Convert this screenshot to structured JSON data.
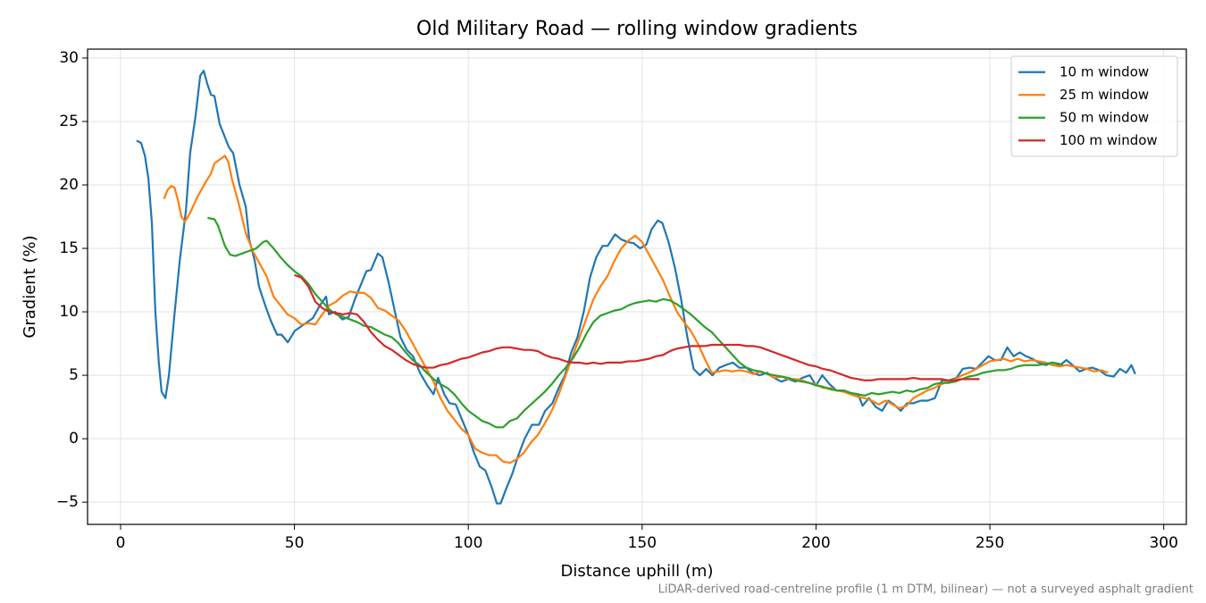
{
  "chart_data": {
    "type": "line",
    "title": "Old Military Road — rolling window gradients",
    "xlabel": "Distance uphill (m)",
    "ylabel": "Gradient (%)",
    "annotation": "LiDAR-derived road-centreline profile (1 m DTM, bilinear) — not a surveyed asphalt gradient",
    "xlim": [
      -9.5,
      306.5
    ],
    "ylim": [
      -6.75,
      30.7
    ],
    "xticks": [
      0,
      50,
      100,
      150,
      200,
      250,
      300
    ],
    "yticks": [
      {
        "value": -5,
        "label": "−5"
      },
      0,
      5,
      10,
      15,
      20,
      25,
      30
    ],
    "grid": true,
    "legend": "upper right",
    "series": [
      {
        "name": "10 m window",
        "color": "#1f77b4",
        "x": [
          4.6,
          5.9,
          7,
          8,
          9,
          10,
          11,
          11.8,
          12.9,
          13.9,
          15.4,
          17,
          18.8,
          20,
          21.6,
          22.9,
          23.9,
          24.9,
          26,
          27,
          28.5,
          31.1,
          32.4,
          34.2,
          36,
          37,
          38.6,
          39.8,
          41.6,
          43.2,
          45,
          46.3,
          48.1,
          50.1,
          52.7,
          55.3,
          57.3,
          59.1,
          59.9,
          61.7,
          63.8,
          65.6,
          67.4,
          69.2,
          70.7,
          72,
          74,
          75.3,
          77.1,
          78.9,
          80.5,
          82.3,
          84.1,
          86.1,
          88.2,
          90,
          91.3,
          93.1,
          94.6,
          96.4,
          98.2,
          100,
          101.5,
          103.3,
          104.9,
          106.7,
          108.2,
          109.3,
          110.8,
          112.6,
          114.4,
          116.2,
          118.3,
          120.3,
          122.1,
          124.2,
          126,
          127.8,
          129.6,
          131.4,
          133.2,
          135,
          136.8,
          138.6,
          140.1,
          142.2,
          144,
          145.8,
          147.6,
          149.4,
          151.2,
          152.7,
          154.5,
          155.8,
          157.6,
          159.4,
          161.2,
          163,
          164.8,
          166.6,
          168.4,
          170.2,
          172.2,
          174,
          176.1,
          177.9,
          180,
          181.7,
          183.8,
          185.9,
          187.9,
          190,
          192,
          194.1,
          196.1,
          198.2,
          200,
          201.8,
          203.9,
          205.9,
          208,
          210,
          212.1,
          213.4,
          215.2,
          217.2,
          219,
          220.8,
          222.4,
          224.4,
          226.2,
          228,
          230.1,
          232.1,
          234.2,
          236.2,
          238.3,
          240.4,
          242.2,
          244.2,
          246,
          247.8,
          249.6,
          251.4,
          253.2,
          255,
          256.8,
          258.6,
          260.4,
          262.2,
          264,
          266.1,
          268.1,
          270.2,
          272,
          273.8,
          275.8,
          277.6,
          279.4,
          281.5,
          283.5,
          285.6,
          287.4,
          289.2,
          290.7,
          291.8
        ],
        "values": [
          23.5,
          23.3,
          22.3,
          20.5,
          17,
          10,
          6,
          3.7,
          3.2,
          5,
          9.5,
          14,
          18,
          22.5,
          25.5,
          28.6,
          29,
          28,
          27.1,
          27,
          24.8,
          23,
          22.5,
          20,
          18.3,
          15.7,
          14,
          12,
          10.5,
          9.3,
          8.2,
          8.2,
          7.6,
          8.5,
          9,
          9.5,
          10.5,
          11.2,
          9.8,
          10,
          9.4,
          9.6,
          11,
          12.2,
          13.2,
          13.3,
          14.6,
          14.3,
          12.3,
          10,
          8,
          7,
          6.5,
          5.2,
          4.2,
          3.5,
          4.8,
          3.5,
          2.8,
          2.7,
          1.5,
          0.3,
          -1,
          -2.2,
          -2.5,
          -3.8,
          -5.1,
          -5.1,
          -4,
          -2.8,
          -1.3,
          0,
          1.1,
          1.1,
          2.2,
          2.8,
          4,
          5,
          6.8,
          8,
          10,
          12.7,
          14.3,
          15.2,
          15.2,
          16.1,
          15.7,
          15.5,
          15.4,
          15,
          15.3,
          16.5,
          17.2,
          17,
          15.5,
          13.5,
          11,
          8,
          5.5,
          5,
          5.5,
          5,
          5.6,
          5.8,
          6,
          5.6,
          5.6,
          5.2,
          5,
          5.2,
          4.8,
          4.5,
          4.7,
          4.5,
          4.8,
          5,
          4.2,
          5,
          4.3,
          3.8,
          3.8,
          3.6,
          3.5,
          2.6,
          3.2,
          2.5,
          2.2,
          3,
          2.7,
          2.2,
          2.8,
          2.8,
          3,
          3,
          3.2,
          4.6,
          4.6,
          4.8,
          5.5,
          5.6,
          5.5,
          6,
          6.5,
          6.2,
          6.2,
          7.2,
          6.5,
          6.8,
          6.5,
          6.3,
          6,
          5.8,
          6,
          5.8,
          6.2,
          5.8,
          5.3,
          5.5,
          5.6,
          5.4,
          5,
          4.9,
          5.5,
          5.2,
          5.8,
          5.1
        ]
      },
      {
        "name": "25 m window",
        "color": "#ff7f0e",
        "x": [
          12.5,
          13.5,
          14.5,
          15.5,
          16.5,
          17.5,
          18.5,
          20,
          22,
          24,
          26,
          27,
          28.5,
          30,
          31,
          32,
          34,
          36,
          38,
          40,
          42,
          44,
          46,
          48,
          50,
          52,
          54,
          56,
          58,
          60,
          62,
          64,
          66,
          68,
          70,
          72,
          74,
          76,
          78,
          80,
          82,
          84,
          86,
          88,
          90,
          92,
          94,
          96,
          98,
          100,
          102,
          104,
          106,
          108,
          110,
          112,
          114,
          116,
          118,
          120,
          122,
          124,
          126,
          128,
          130,
          132,
          134,
          136,
          138,
          140,
          142,
          144,
          146,
          148,
          150,
          152,
          154,
          156,
          158,
          160,
          162,
          164,
          166,
          168,
          170,
          172,
          174,
          176,
          178,
          180,
          182,
          184,
          186,
          188,
          190,
          192,
          194,
          196,
          198,
          200,
          202,
          204,
          206,
          208,
          210,
          212,
          214,
          216,
          218,
          220,
          222,
          224,
          226,
          228,
          230,
          232,
          234,
          236,
          238,
          240,
          242,
          244,
          246,
          248,
          250,
          252,
          254,
          256,
          258,
          260,
          262,
          264,
          266,
          268,
          270,
          272,
          274,
          276,
          278,
          280,
          282,
          284
        ],
        "values": [
          18.9,
          19.6,
          19.9,
          19.8,
          18.8,
          17.5,
          17.1,
          17.8,
          19,
          20,
          20.9,
          21.7,
          22,
          22.3,
          21.8,
          20.5,
          18.5,
          16.2,
          14.8,
          13.8,
          12.8,
          11.2,
          10.5,
          9.8,
          9.5,
          9,
          9.1,
          9,
          9.8,
          10.5,
          10.8,
          11.3,
          11.6,
          11.5,
          11.5,
          11.1,
          10.3,
          10.1,
          9.7,
          9.3,
          8.5,
          7.5,
          6.5,
          5.5,
          4.5,
          3.2,
          2.2,
          1.5,
          0.8,
          0.3,
          -0.8,
          -1.1,
          -1.3,
          -1.3,
          -1.8,
          -1.9,
          -1.6,
          -1.1,
          -0.3,
          0.3,
          1.2,
          2.2,
          3.5,
          5,
          6.5,
          8,
          9.5,
          11,
          12,
          12.8,
          14,
          15,
          15.6,
          16,
          15.5,
          14.5,
          13.5,
          12.5,
          11.2,
          10,
          9.2,
          8.5,
          7.5,
          6.3,
          5.2,
          5.3,
          5.4,
          5.3,
          5.4,
          5.3,
          5.1,
          5.3,
          5.1,
          4.8,
          4.9,
          4.7,
          4.7,
          4.6,
          4.4,
          4.3,
          4,
          4,
          3.8,
          3.7,
          3.5,
          3.3,
          3.2,
          3,
          2.7,
          3,
          2.7,
          2.4,
          2.6,
          3.2,
          3.5,
          3.8,
          4,
          4.3,
          4.5,
          4.7,
          5,
          5.2,
          5.5,
          5.8,
          6.1,
          6.2,
          6.3,
          6.1,
          6.3,
          6.1,
          6.2,
          6.1,
          6,
          5.8,
          5.7,
          5.8,
          5.7,
          5.6,
          5.5,
          5.3,
          5.4,
          5.2
        ]
      },
      {
        "name": "50 m window",
        "color": "#2ca02c",
        "x": [
          25,
          27,
          28,
          30,
          31.5,
          33,
          35,
          37,
          39,
          41,
          42,
          44,
          46,
          48,
          50,
          52,
          54,
          56,
          58,
          60,
          62,
          64,
          66,
          68,
          70,
          72,
          74,
          76,
          78,
          80,
          82,
          84,
          86,
          88,
          90,
          92,
          94,
          96,
          98,
          100,
          102,
          104,
          106,
          108,
          110,
          112,
          114,
          116,
          118,
          120,
          122,
          124,
          126,
          128,
          130,
          132,
          134,
          136,
          138,
          140,
          142,
          144,
          146,
          148,
          150,
          152,
          154,
          156,
          158,
          160,
          162,
          164,
          166,
          168,
          170,
          172,
          174,
          176,
          178,
          180,
          182,
          184,
          186,
          188,
          190,
          192,
          194,
          196,
          198,
          200,
          202,
          204,
          206,
          208,
          210,
          212,
          214,
          216,
          218,
          220,
          222,
          224,
          226,
          228,
          230,
          232,
          234,
          236,
          238,
          240,
          242,
          244,
          246,
          248,
          250,
          252,
          254,
          256,
          258,
          260,
          262,
          264,
          266,
          268,
          270,
          271
        ],
        "values": [
          17.4,
          17.3,
          16.8,
          15.2,
          14.5,
          14.4,
          14.6,
          14.8,
          15,
          15.5,
          15.6,
          15,
          14.3,
          13.7,
          13.2,
          12.8,
          12.2,
          11.4,
          10.8,
          10.2,
          9.8,
          9.6,
          9.4,
          9.2,
          8.9,
          8.8,
          8.5,
          8.2,
          8,
          7.5,
          6.8,
          6.2,
          5.8,
          5.2,
          4.7,
          4.3,
          4,
          3.5,
          2.8,
          2.2,
          1.8,
          1.4,
          1.2,
          0.9,
          0.9,
          1.4,
          1.6,
          2.2,
          2.7,
          3.2,
          3.7,
          4.3,
          5,
          5.6,
          6.3,
          7.2,
          8.3,
          9.2,
          9.7,
          9.9,
          10.1,
          10.2,
          10.5,
          10.7,
          10.8,
          10.9,
          10.8,
          11,
          10.9,
          10.6,
          10.2,
          9.8,
          9.3,
          8.8,
          8.4,
          7.8,
          7.2,
          6.6,
          6,
          5.6,
          5.4,
          5.3,
          5.1,
          5,
          4.9,
          4.8,
          4.6,
          4.5,
          4.4,
          4.2,
          4.1,
          3.9,
          3.8,
          3.8,
          3.6,
          3.5,
          3.4,
          3.6,
          3.5,
          3.6,
          3.7,
          3.6,
          3.8,
          3.7,
          3.9,
          4,
          4.3,
          4.4,
          4.4,
          4.5,
          4.7,
          4.9,
          5,
          5.2,
          5.3,
          5.4,
          5.4,
          5.5,
          5.7,
          5.8,
          5.8,
          5.8,
          5.9,
          6,
          5.9,
          5.8
        ]
      },
      {
        "name": "100 m window",
        "color": "#d62728",
        "x": [
          50,
          52,
          54,
          56,
          58,
          60,
          62,
          64,
          66,
          68,
          70,
          72,
          74,
          76,
          78,
          80,
          82,
          84,
          86,
          88,
          90,
          92,
          94,
          96,
          98,
          100,
          102,
          104,
          106,
          108,
          110,
          112,
          114,
          116,
          118,
          120,
          122,
          124,
          126,
          128,
          130,
          132,
          134,
          136,
          138,
          140,
          142,
          144,
          146,
          148,
          150,
          152,
          154,
          156,
          158,
          160,
          162,
          164,
          166,
          168,
          170,
          172,
          174,
          176,
          178,
          180,
          182,
          184,
          186,
          188,
          190,
          192,
          194,
          196,
          198,
          200,
          202,
          204,
          206,
          208,
          210,
          212,
          214,
          216,
          218,
          220,
          222,
          224,
          226,
          228,
          230,
          232,
          234,
          236,
          238,
          240,
          242,
          244,
          246,
          247
        ],
        "values": [
          12.9,
          12.7,
          12,
          10.8,
          10.3,
          10,
          9.9,
          9.8,
          9.9,
          9.8,
          9.2,
          8.4,
          7.8,
          7.3,
          7,
          6.6,
          6.2,
          5.9,
          5.7,
          5.6,
          5.6,
          5.8,
          5.9,
          6.1,
          6.3,
          6.4,
          6.6,
          6.8,
          6.9,
          7.1,
          7.2,
          7.2,
          7.1,
          7,
          7,
          6.9,
          6.6,
          6.4,
          6.3,
          6.1,
          6,
          6,
          5.9,
          6,
          5.9,
          6,
          6,
          6,
          6.1,
          6.1,
          6.2,
          6.3,
          6.5,
          6.6,
          6.9,
          7.1,
          7.2,
          7.3,
          7.3,
          7.3,
          7.4,
          7.4,
          7.4,
          7.4,
          7.4,
          7.3,
          7.3,
          7.2,
          7,
          6.8,
          6.6,
          6.4,
          6.2,
          6,
          5.8,
          5.7,
          5.5,
          5.4,
          5.2,
          5,
          4.8,
          4.7,
          4.6,
          4.6,
          4.7,
          4.7,
          4.7,
          4.7,
          4.7,
          4.8,
          4.7,
          4.7,
          4.7,
          4.7,
          4.6,
          4.6,
          4.7,
          4.7,
          4.7,
          4.7
        ]
      }
    ]
  }
}
